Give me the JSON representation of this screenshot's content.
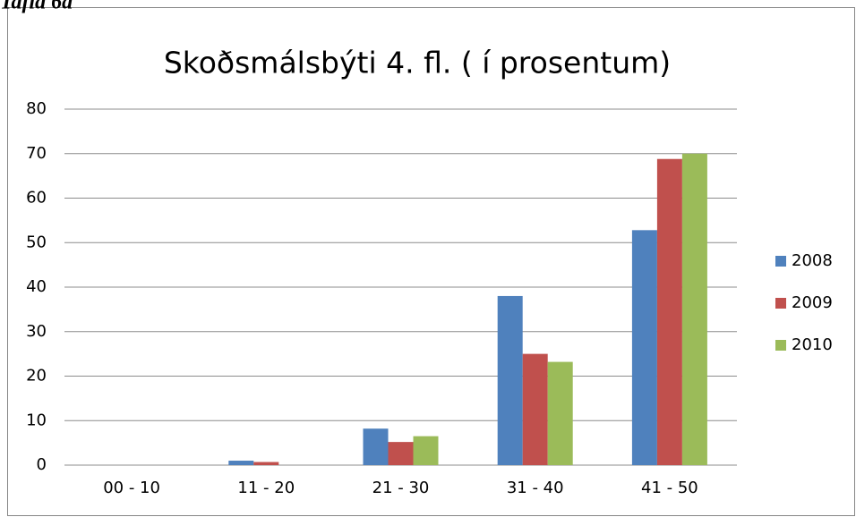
{
  "caption": "Tafla 6a",
  "chart_data": {
    "type": "bar",
    "title": "Skoðsmálsbýti 4. fl. ( í prosentum)",
    "categories": [
      "00 - 10",
      "11 - 20",
      "21 - 30",
      "31 - 40",
      "41 - 50"
    ],
    "series": [
      {
        "name": "2008",
        "color": "#4f81bd",
        "values": [
          0,
          1,
          8.2,
          38,
          52.8
        ]
      },
      {
        "name": "2009",
        "color": "#c0504d",
        "values": [
          0,
          0.7,
          5.2,
          25,
          68.8
        ]
      },
      {
        "name": "2010",
        "color": "#9bbb59",
        "values": [
          0,
          0,
          6.5,
          23.2,
          70
        ]
      }
    ],
    "ylim": [
      0,
      80
    ],
    "yticks": [
      0,
      10,
      20,
      30,
      40,
      50,
      60,
      70,
      80
    ],
    "grid": true,
    "legend": "right"
  }
}
